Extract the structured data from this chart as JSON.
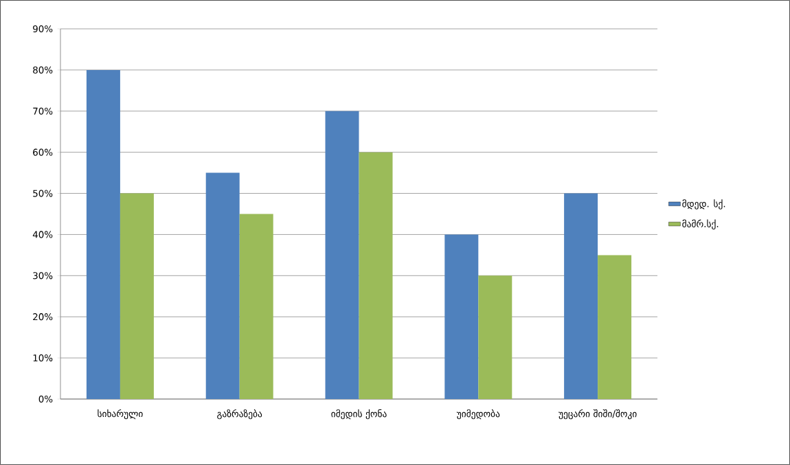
{
  "chart_data": {
    "type": "bar",
    "categories": [
      "სიხარული",
      "გაზრაზება",
      "იმედის ქონა",
      "უიმედობა",
      "უეცარი შიში/შოკი"
    ],
    "series": [
      {
        "name": "მდედ. სქ.",
        "color": "#4f81bd",
        "values": [
          80,
          55,
          70,
          40,
          50
        ]
      },
      {
        "name": "მამრ.სქ.",
        "color": "#9bbb59",
        "values": [
          50,
          45,
          60,
          30,
          35
        ]
      }
    ],
    "ylim": [
      0,
      90
    ],
    "yticks": [
      {
        "value": 0,
        "label": "0%"
      },
      {
        "value": 10,
        "label": "10%"
      },
      {
        "value": 20,
        "label": "20%"
      },
      {
        "value": 30,
        "label": "30%"
      },
      {
        "value": 40,
        "label": "40%"
      },
      {
        "value": 50,
        "label": "50%"
      },
      {
        "value": 60,
        "label": "60%"
      },
      {
        "value": 70,
        "label": "70%"
      },
      {
        "value": 80,
        "label": "80%"
      },
      {
        "value": 90,
        "label": "90%"
      }
    ],
    "grid": "y",
    "legend": "right"
  }
}
